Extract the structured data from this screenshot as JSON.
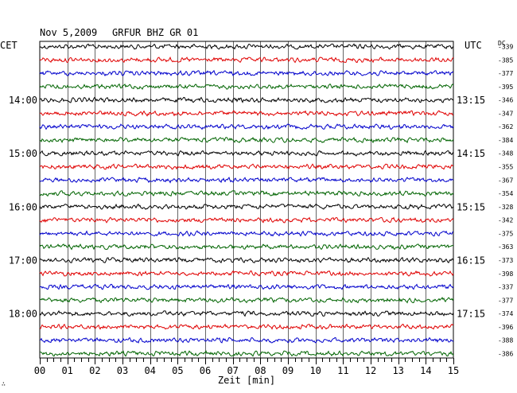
{
  "header": {
    "date": "Nov 5,2009",
    "station": "GRFUR BHZ GR 01",
    "left_timezone": "CET",
    "right_timezone": "UTC",
    "dc_label": "DC",
    "corner_mark": "∴"
  },
  "chart_data": {
    "type": "line",
    "title": "Nov 5,2009   GRFUR BHZ GR 01",
    "xlabel": "Zeit [min]",
    "xlim": [
      0,
      15
    ],
    "x_ticks": [
      "00",
      "01",
      "02",
      "03",
      "04",
      "05",
      "06",
      "07",
      "08",
      "09",
      "10",
      "11",
      "12",
      "13",
      "14",
      "15"
    ],
    "grid": true,
    "trace_colors": [
      "#000000",
      "#e00000",
      "#0000cc",
      "#006400"
    ],
    "traces_count": 24,
    "left_hour_labels": [
      {
        "trace_index": 4,
        "label": "14:00"
      },
      {
        "trace_index": 8,
        "label": "15:00"
      },
      {
        "trace_index": 12,
        "label": "16:00"
      },
      {
        "trace_index": 16,
        "label": "17:00"
      },
      {
        "trace_index": 20,
        "label": "18:00"
      }
    ],
    "right_hour_labels": [
      {
        "trace_index": 4,
        "label": "13:15"
      },
      {
        "trace_index": 8,
        "label": "14:15"
      },
      {
        "trace_index": 12,
        "label": "15:15"
      },
      {
        "trace_index": 16,
        "label": "16:15"
      },
      {
        "trace_index": 20,
        "label": "17:15"
      }
    ],
    "dc_offsets": [
      "-339",
      "-385",
      "-377",
      "-395",
      "-346",
      "-347",
      "-362",
      "-384",
      "-348",
      "-355",
      "-367",
      "-354",
      "-328",
      "-342",
      "-375",
      "-363",
      "-373",
      "-398",
      "-337",
      "-377",
      "-374",
      "-396",
      "-388",
      "-386"
    ]
  }
}
